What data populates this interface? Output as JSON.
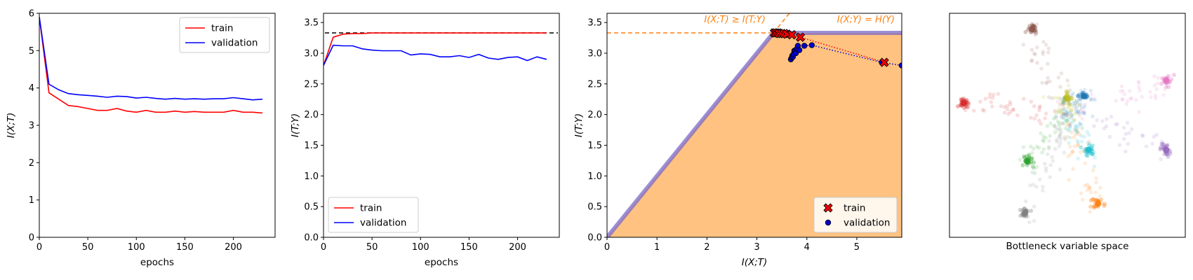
{
  "chart_data": [
    {
      "type": "line",
      "xlabel": "epochs",
      "ylabel": "I(X;T)",
      "xlim": [
        0,
        243
      ],
      "ylim": [
        0,
        6
      ],
      "xticks": [
        "0",
        "50",
        "100",
        "150",
        "200"
      ],
      "xtick_values": [
        0,
        50,
        100,
        150,
        200
      ],
      "yticks": [
        "0",
        "1",
        "2",
        "3",
        "4",
        "5",
        "6"
      ],
      "ytick_values": [
        0,
        1,
        2,
        3,
        4,
        5,
        6
      ],
      "grid": false,
      "legend_position": "top-right",
      "x": [
        0,
        10,
        20,
        30,
        40,
        50,
        60,
        70,
        80,
        90,
        100,
        110,
        120,
        130,
        140,
        150,
        160,
        170,
        180,
        190,
        200,
        210,
        220,
        230
      ],
      "series": [
        {
          "name": "train",
          "color": "#ff0000",
          "values": [
            5.9,
            3.87,
            3.7,
            3.53,
            3.5,
            3.45,
            3.4,
            3.4,
            3.45,
            3.38,
            3.35,
            3.4,
            3.35,
            3.35,
            3.38,
            3.35,
            3.37,
            3.35,
            3.35,
            3.35,
            3.4,
            3.35,
            3.35,
            3.33
          ]
        },
        {
          "name": "validation",
          "color": "#0000ff",
          "values": [
            5.9,
            4.1,
            3.95,
            3.85,
            3.82,
            3.8,
            3.78,
            3.75,
            3.78,
            3.77,
            3.73,
            3.75,
            3.72,
            3.7,
            3.72,
            3.7,
            3.71,
            3.7,
            3.71,
            3.71,
            3.74,
            3.71,
            3.68,
            3.7
          ]
        }
      ]
    },
    {
      "type": "line",
      "xlabel": "epochs",
      "ylabel": "I(T;Y)",
      "xlim": [
        0,
        243
      ],
      "ylim": [
        0,
        3.65
      ],
      "xticks": [
        "0",
        "50",
        "100",
        "150",
        "200"
      ],
      "xtick_values": [
        0,
        50,
        100,
        150,
        200
      ],
      "yticks": [
        "0.0",
        "0.5",
        "1.0",
        "1.5",
        "2.0",
        "2.5",
        "3.0",
        "3.5"
      ],
      "ytick_values": [
        0,
        0.5,
        1,
        1.5,
        2,
        2.5,
        3,
        3.5
      ],
      "grid": false,
      "legend_position": "bottom-left",
      "reference_line": {
        "y": 3.33,
        "color": "#000000",
        "style": "dashed"
      },
      "x": [
        0,
        10,
        20,
        30,
        40,
        50,
        60,
        70,
        80,
        90,
        100,
        110,
        120,
        130,
        140,
        150,
        160,
        170,
        180,
        190,
        200,
        210,
        220,
        230
      ],
      "series": [
        {
          "name": "train",
          "color": "#ff0000",
          "values": [
            2.8,
            3.26,
            3.31,
            3.32,
            3.32,
            3.33,
            3.33,
            3.33,
            3.33,
            3.33,
            3.33,
            3.33,
            3.33,
            3.33,
            3.33,
            3.33,
            3.33,
            3.33,
            3.33,
            3.33,
            3.33,
            3.33,
            3.33,
            3.33
          ]
        },
        {
          "name": "validation",
          "color": "#0000ff",
          "values": [
            2.8,
            3.13,
            3.12,
            3.12,
            3.07,
            3.05,
            3.04,
            3.04,
            3.04,
            2.97,
            2.99,
            2.98,
            2.94,
            2.94,
            2.96,
            2.93,
            2.98,
            2.92,
            2.9,
            2.93,
            2.94,
            2.88,
            2.94,
            2.9
          ]
        }
      ]
    },
    {
      "type": "scatter",
      "xlabel": "I(X;T)",
      "ylabel": "I(T;Y)",
      "xlim": [
        0,
        5.9
      ],
      "ylim": [
        0,
        3.65
      ],
      "xticks": [
        "0",
        "1",
        "2",
        "3",
        "4",
        "5"
      ],
      "xtick_values": [
        0,
        1,
        2,
        3,
        4,
        5
      ],
      "yticks": [
        "0.0",
        "0.5",
        "1.0",
        "1.5",
        "2.0",
        "2.5",
        "3.0",
        "3.5"
      ],
      "ytick_values": [
        0,
        0.5,
        1,
        1.5,
        2,
        2.5,
        3,
        3.5
      ],
      "grid": false,
      "legend_position": "bottom-right",
      "HY": 3.33,
      "feasible_region_color": "#ffc280",
      "boundary_color": "#7b68c8",
      "annotations": [
        {
          "text": "I(X;T) ≥ I(T;Y)",
          "color": "#ff7f0e"
        },
        {
          "text": "I(X;Y) = H(Y)",
          "color": "#ff7f0e"
        }
      ],
      "series": [
        {
          "name": "train",
          "marker": "X",
          "color": "#ff0000",
          "x": [
            3.35,
            3.38,
            3.42,
            3.45,
            3.5,
            3.55,
            3.6,
            3.7,
            3.87,
            5.55
          ],
          "y": [
            3.33,
            3.33,
            3.33,
            3.32,
            3.32,
            3.32,
            3.31,
            3.3,
            3.26,
            2.85
          ]
        },
        {
          "name": "validation",
          "marker": "o",
          "color": "#0000cc",
          "x": [
            3.68,
            3.7,
            3.71,
            3.72,
            3.73,
            3.75,
            3.76,
            3.78,
            3.8,
            3.82,
            3.85,
            3.95,
            4.1,
            5.5,
            5.9
          ],
          "y": [
            2.9,
            2.93,
            2.96,
            2.94,
            2.98,
            3.04,
            3.04,
            3.0,
            3.07,
            3.12,
            3.05,
            3.12,
            3.13,
            2.85,
            2.8
          ]
        }
      ]
    },
    {
      "type": "scatter",
      "xlabel": "Bottleneck variable space",
      "axes_visible": false,
      "clusters": [
        {
          "color": "#d62728",
          "x": 0.06,
          "y": 0.6
        },
        {
          "color": "#8c564b",
          "x": 0.35,
          "y": 0.93
        },
        {
          "color": "#e377c2",
          "x": 0.92,
          "y": 0.7
        },
        {
          "color": "#bcbd22",
          "x": 0.5,
          "y": 0.62
        },
        {
          "color": "#1f77b4",
          "x": 0.57,
          "y": 0.63
        },
        {
          "color": "#17becf",
          "x": 0.59,
          "y": 0.39
        },
        {
          "color": "#9467bd",
          "x": 0.92,
          "y": 0.39
        },
        {
          "color": "#2ca02c",
          "x": 0.33,
          "y": 0.34
        },
        {
          "color": "#7f7f7f",
          "x": 0.32,
          "y": 0.11
        },
        {
          "color": "#ff7f0e",
          "x": 0.63,
          "y": 0.15
        }
      ]
    }
  ]
}
